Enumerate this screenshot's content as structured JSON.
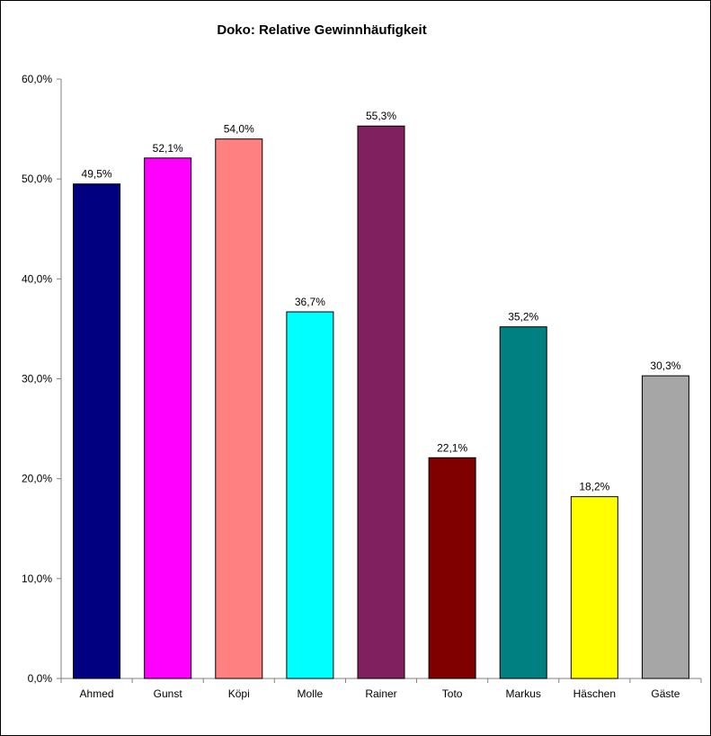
{
  "chart_data": {
    "type": "bar",
    "title": "Doko: Relative Gewinnhäufigkeit",
    "xlabel": "",
    "ylabel": "",
    "ylim": [
      0,
      60
    ],
    "yticks": [
      "0,0%",
      "10,0%",
      "20,0%",
      "30,0%",
      "40,0%",
      "50,0%",
      "60,0%"
    ],
    "grid": false,
    "legend": "none",
    "categories": [
      "Ahmed",
      "Gunst",
      "Köpi",
      "Molle",
      "Rainer",
      "Toto",
      "Markus",
      "Häschen",
      "Gäste"
    ],
    "values": [
      49.5,
      52.1,
      54.0,
      36.7,
      55.3,
      22.1,
      35.2,
      18.2,
      30.3
    ],
    "value_labels": [
      "49,5%",
      "52,1%",
      "54,0%",
      "36,7%",
      "55,3%",
      "22,1%",
      "35,2%",
      "18,2%",
      "30,3%"
    ],
    "colors": [
      "#000080",
      "#FF00FF",
      "#FF8080",
      "#00FFFF",
      "#80205F",
      "#800000",
      "#008080",
      "#FFFF00",
      "#A6A6A6"
    ]
  }
}
